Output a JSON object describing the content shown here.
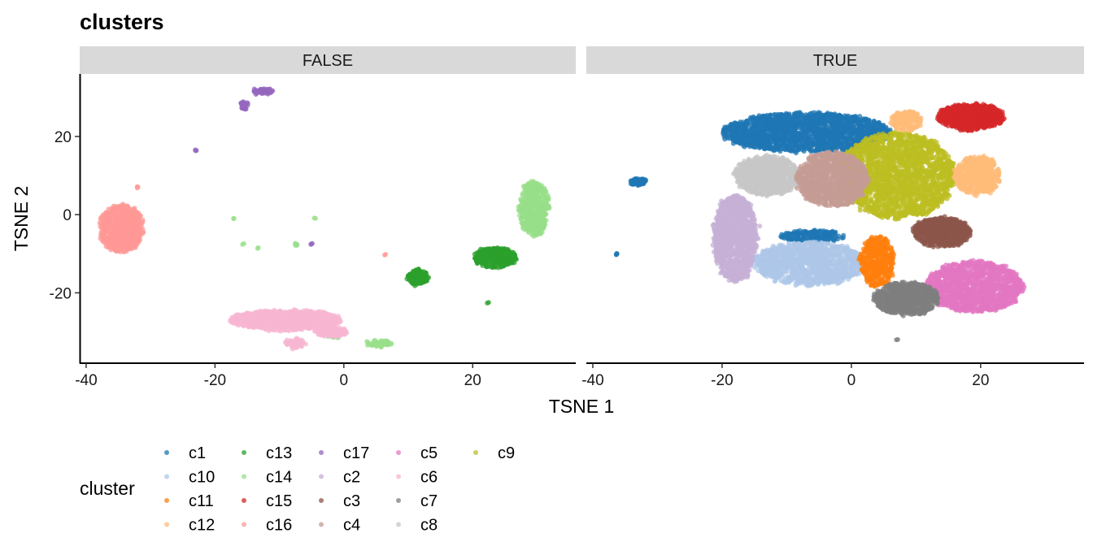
{
  "chart_data": {
    "type": "scatter",
    "title": "clusters",
    "xlabel": "TSNE 1",
    "ylabel": "TSNE 2",
    "xlim": [
      -41,
      36
    ],
    "ylim": [
      -38,
      36
    ],
    "xticks": [
      -40,
      -20,
      0,
      20
    ],
    "yticks": [
      -20,
      0,
      20
    ],
    "facets": [
      "FALSE",
      "TRUE"
    ],
    "legend": {
      "title": "cluster",
      "position": "bottom",
      "entries": [
        {
          "name": "c1",
          "color": "#1f77b4"
        },
        {
          "name": "c10",
          "color": "#aec7e8"
        },
        {
          "name": "c11",
          "color": "#ff7f0e"
        },
        {
          "name": "c12",
          "color": "#ffbb78"
        },
        {
          "name": "c13",
          "color": "#2ca02c"
        },
        {
          "name": "c14",
          "color": "#98df8a"
        },
        {
          "name": "c15",
          "color": "#d62728"
        },
        {
          "name": "c16",
          "color": "#ff9896"
        },
        {
          "name": "c17",
          "color": "#9467bd"
        },
        {
          "name": "c2",
          "color": "#c5b0d5"
        },
        {
          "name": "c3",
          "color": "#8c564b"
        },
        {
          "name": "c4",
          "color": "#c49c94"
        },
        {
          "name": "c5",
          "color": "#e377c2"
        },
        {
          "name": "c6",
          "color": "#f7b6d2"
        },
        {
          "name": "c7",
          "color": "#7f7f7f"
        },
        {
          "name": "c8",
          "color": "#c7c7c7"
        },
        {
          "name": "c9",
          "color": "#bcbd22"
        }
      ]
    },
    "panels": [
      {
        "facet": "FALSE",
        "clusters": [
          {
            "name": "c16",
            "cx": -34.5,
            "cy": -3.5,
            "rx": 3.3,
            "ry": 6,
            "n": 700,
            "jitter": 0.9
          },
          {
            "name": "c16",
            "cx": -32,
            "cy": 7,
            "rx": 0.2,
            "ry": 0.2,
            "n": 3
          },
          {
            "name": "c16",
            "cx": 6.5,
            "cy": -10,
            "rx": 0.2,
            "ry": 0.2,
            "n": 2
          },
          {
            "name": "c17",
            "cx": -12.5,
            "cy": 31.5,
            "rx": 1.6,
            "ry": 0.8,
            "n": 50
          },
          {
            "name": "c17",
            "cx": -15.5,
            "cy": 28,
            "rx": 0.5,
            "ry": 1,
            "n": 30
          },
          {
            "name": "c17",
            "cx": -23,
            "cy": 16.5,
            "rx": 0.2,
            "ry": 0.2,
            "n": 3
          },
          {
            "name": "c17",
            "cx": -5,
            "cy": -7.5,
            "rx": 0.2,
            "ry": 0.2,
            "n": 3
          },
          {
            "name": "c14",
            "cx": 29.5,
            "cy": 1.5,
            "rx": 2.3,
            "ry": 7,
            "n": 500,
            "jitter": 0.7
          },
          {
            "name": "c14",
            "cx": 5.5,
            "cy": -33,
            "rx": 2,
            "ry": 1,
            "n": 40
          },
          {
            "name": "c14",
            "cx": -1.5,
            "cy": -31,
            "rx": 0.8,
            "ry": 0.6,
            "n": 20
          },
          {
            "name": "c14",
            "cx": -17,
            "cy": -1,
            "rx": 0.2,
            "ry": 0.2,
            "n": 2
          },
          {
            "name": "c14",
            "cx": -15.5,
            "cy": -7.5,
            "rx": 0.2,
            "ry": 0.2,
            "n": 2
          },
          {
            "name": "c14",
            "cx": -13.5,
            "cy": -8.5,
            "rx": 0.2,
            "ry": 0.2,
            "n": 2
          },
          {
            "name": "c14",
            "cx": -7.5,
            "cy": -7.5,
            "rx": 0.3,
            "ry": 0.4,
            "n": 5
          },
          {
            "name": "c14",
            "cx": -4.5,
            "cy": -1,
            "rx": 0.2,
            "ry": 0.2,
            "n": 2
          },
          {
            "name": "c13",
            "cx": 23.5,
            "cy": -11,
            "rx": 3.3,
            "ry": 2.5,
            "n": 400,
            "jitter": 0.6
          },
          {
            "name": "c13",
            "cx": 11.5,
            "cy": -16,
            "rx": 1.6,
            "ry": 2,
            "n": 120
          },
          {
            "name": "c13",
            "cx": 22.5,
            "cy": -22.5,
            "rx": 0.2,
            "ry": 0.2,
            "n": 2
          },
          {
            "name": "c6",
            "cx": -9,
            "cy": -27,
            "rx": 8.5,
            "ry": 2.5,
            "n": 900,
            "jitter": 0.8
          },
          {
            "name": "c6",
            "cx": -2,
            "cy": -30,
            "rx": 2.5,
            "ry": 1.2,
            "n": 150
          },
          {
            "name": "c6",
            "cx": -7.5,
            "cy": -33,
            "rx": 1.6,
            "ry": 1.1,
            "n": 60
          }
        ]
      },
      {
        "facet": "TRUE",
        "clusters": [
          {
            "name": "c2",
            "cx": -18,
            "cy": -6,
            "rx": 3.3,
            "ry": 11,
            "n": 1100,
            "jitter": 0.8
          },
          {
            "name": "c8",
            "cx": -13,
            "cy": 10,
            "rx": 5,
            "ry": 5,
            "n": 900,
            "jitter": 0.7
          },
          {
            "name": "c1",
            "cx": -7,
            "cy": 21,
            "rx": 13,
            "ry": 5,
            "n": 1800,
            "jitter": 0.7
          },
          {
            "name": "c1",
            "cx": -33,
            "cy": 8.5,
            "rx": 1.2,
            "ry": 0.9,
            "n": 60
          },
          {
            "name": "c1",
            "cx": -6,
            "cy": -5.5,
            "rx": 5,
            "ry": 1.5,
            "n": 200
          },
          {
            "name": "c1",
            "cx": -36.5,
            "cy": -10,
            "rx": 0.4,
            "ry": 0.6,
            "n": 4
          },
          {
            "name": "c9",
            "cx": 7,
            "cy": 10,
            "rx": 9,
            "ry": 11,
            "n": 2000,
            "jitter": 0.7
          },
          {
            "name": "c4",
            "cx": -3,
            "cy": 9,
            "rx": 5.5,
            "ry": 7,
            "n": 1000,
            "jitter": 0.6
          },
          {
            "name": "c12",
            "cx": 19.5,
            "cy": 10,
            "rx": 3.5,
            "ry": 5,
            "n": 500,
            "jitter": 0.7
          },
          {
            "name": "c12",
            "cx": 8.5,
            "cy": 24,
            "rx": 2.5,
            "ry": 2.5,
            "n": 150
          },
          {
            "name": "c15",
            "cx": 18.5,
            "cy": 25,
            "rx": 5,
            "ry": 3.3,
            "n": 700,
            "jitter": 0.7
          },
          {
            "name": "c3",
            "cx": 14,
            "cy": -4.5,
            "rx": 4.5,
            "ry": 3.7,
            "n": 600,
            "jitter": 0.6
          },
          {
            "name": "c10",
            "cx": -6.5,
            "cy": -12.5,
            "rx": 8.5,
            "ry": 5.5,
            "n": 1100,
            "jitter": 0.7
          },
          {
            "name": "c11",
            "cx": 4,
            "cy": -12,
            "rx": 2.6,
            "ry": 6.5,
            "n": 450,
            "jitter": 0.6
          },
          {
            "name": "c5",
            "cx": 19,
            "cy": -18.5,
            "rx": 7.5,
            "ry": 6.5,
            "n": 1300,
            "jitter": 0.7
          },
          {
            "name": "c7",
            "cx": 8.5,
            "cy": -21.5,
            "rx": 5,
            "ry": 4.2,
            "n": 700,
            "jitter": 0.6
          },
          {
            "name": "c7",
            "cx": 7,
            "cy": -32,
            "rx": 0.2,
            "ry": 0.2,
            "n": 2
          }
        ]
      }
    ]
  }
}
